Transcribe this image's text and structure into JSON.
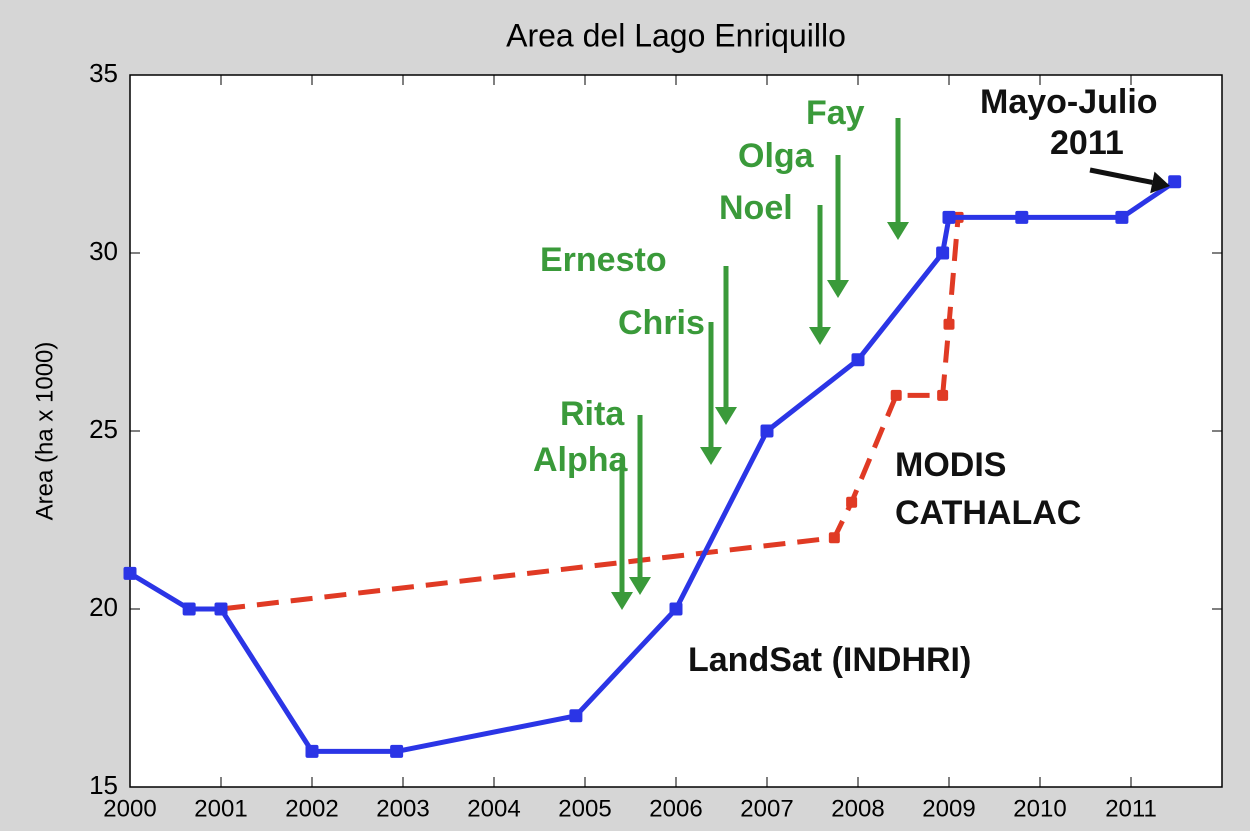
{
  "chart_data": {
    "type": "line",
    "title": "Area del Lago Enriquillo",
    "y_label": "Area (ha x 1000)",
    "xlim": [
      2000,
      2012
    ],
    "xticks": [
      2000,
      2001,
      2002,
      2003,
      2004,
      2005,
      2006,
      2007,
      2008,
      2009,
      2010,
      2011
    ],
    "ylim": [
      15,
      35
    ],
    "yticks": [
      15,
      20,
      25,
      30,
      35
    ],
    "series": [
      {
        "name": "LandSat (INDHRI)",
        "color": "#2b35e6",
        "dashed": false,
        "x": [
          2000,
          2000.65,
          2001,
          2002,
          2002.93,
          2004.9,
          2006,
          2007,
          2008,
          2008.93,
          2009,
          2009.8,
          2010.9,
          2011.48
        ],
        "values": [
          21,
          20,
          20,
          16,
          16,
          17,
          20,
          25,
          27,
          30,
          31,
          31,
          31,
          32
        ]
      },
      {
        "color": "#e03a24",
        "dashed": true,
        "x": [
          2000.65,
          2001,
          2007.74,
          2007.93,
          2008.42,
          2008.93,
          2009,
          2009.1
        ],
        "values": [
          20,
          20,
          22,
          23,
          26,
          26,
          28,
          31
        ]
      }
    ],
    "annotations": [
      {
        "text": "Alpha",
        "color": "#3a9a3a"
      },
      {
        "text": "Rita",
        "color": "#3a9a3a"
      },
      {
        "text": "Chris",
        "color": "#3a9a3a"
      },
      {
        "text": "Ernesto",
        "color": "#3a9a3a"
      },
      {
        "text": "Noel",
        "color": "#3a9a3a"
      },
      {
        "text": "Olga",
        "color": "#3a9a3a"
      },
      {
        "text": "Fay",
        "color": "#3a9a3a"
      },
      {
        "text": "Mayo-Julio",
        "color": "#111111"
      },
      {
        "text": "2011",
        "color": "#111111"
      },
      {
        "text": "MODIS",
        "color": "#111111"
      },
      {
        "text": "CATHALAC",
        "color": "#111111"
      }
    ]
  }
}
